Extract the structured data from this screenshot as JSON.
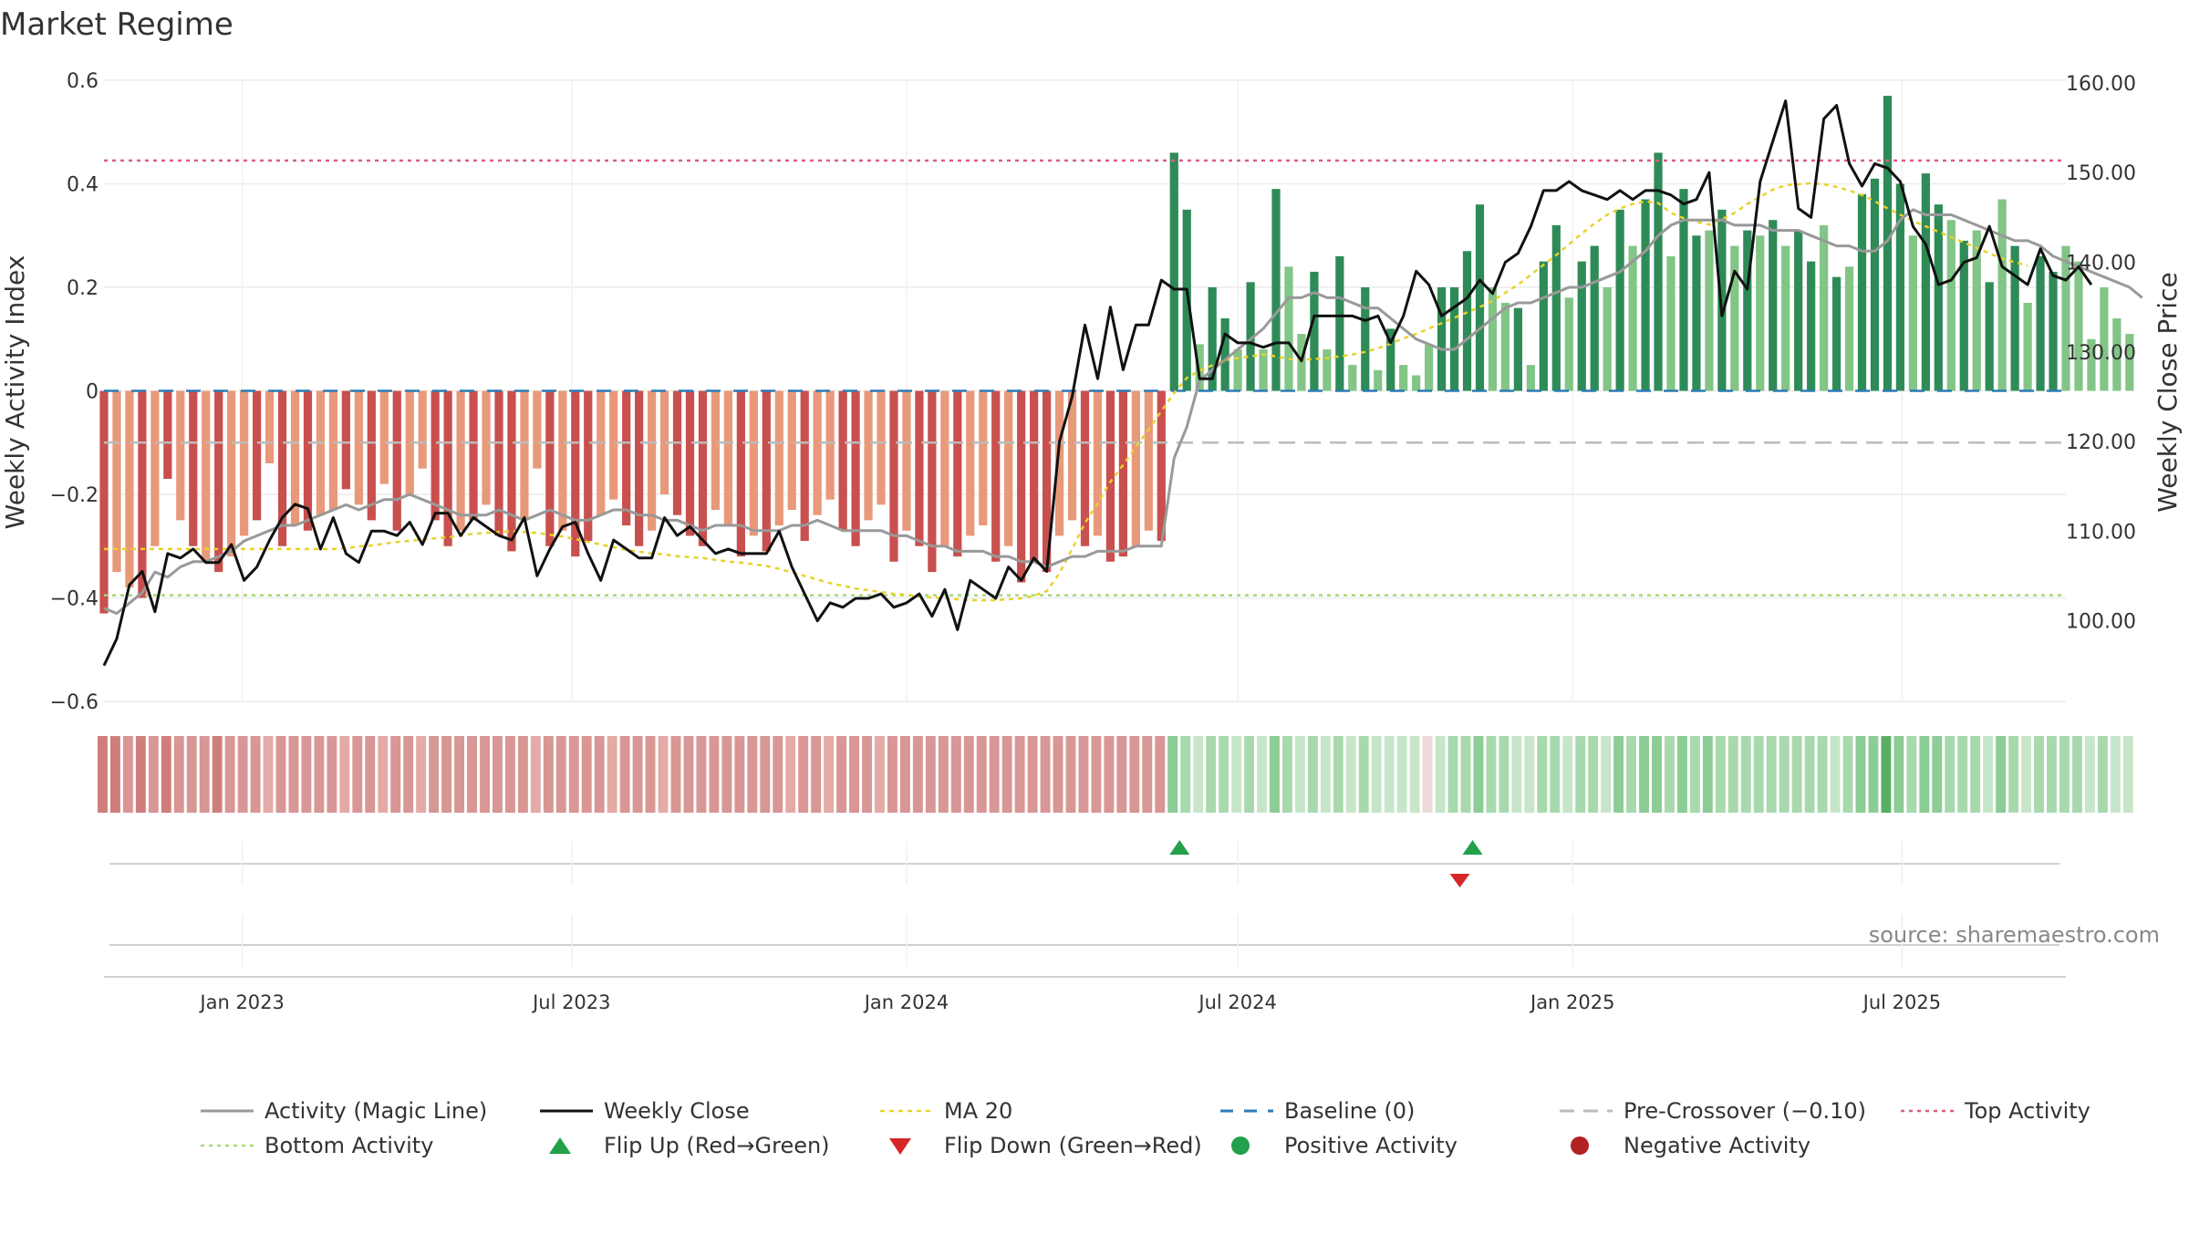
{
  "title": "Market Regime",
  "source": "source: sharemaestro.com",
  "chart_data": {
    "type": "bar",
    "x_label_dates": [
      "Jan 2023",
      "Jul 2023",
      "Jan 2024",
      "Jul 2024",
      "Jan 2025",
      "Jul 2025"
    ],
    "x_range": [
      "2022-10-17",
      "2025-09-29"
    ],
    "left_axis": {
      "label": "Weekly Activity Index",
      "ylim": [
        -0.6,
        0.6
      ],
      "ticks": [
        0.6,
        0.4,
        0.2,
        0,
        -0.2,
        -0.4,
        -0.6
      ],
      "tick_labels": [
        "0.6",
        "0.4",
        "0.2",
        "0",
        "−0.2",
        "−0.4",
        "−0.6"
      ]
    },
    "right_axis": {
      "label": "Weekly Close Price",
      "ylim": [
        91,
        160.3
      ],
      "ticks": [
        160,
        150,
        140,
        130,
        120,
        110,
        100
      ],
      "tick_labels": [
        "160.00",
        "150.00",
        "140.00",
        "130.00",
        "120.00",
        "110.00",
        "100.00"
      ]
    },
    "reference_lines": {
      "baseline": 0,
      "pre_crossover": -0.1,
      "top_activity": 0.445,
      "bottom_activity": -0.395
    },
    "weeks_start": "2022-10-17",
    "week_count": 155,
    "activity": [
      -0.43,
      -0.35,
      -0.38,
      -0.4,
      -0.3,
      -0.17,
      -0.25,
      -0.3,
      -0.33,
      -0.35,
      -0.32,
      -0.28,
      -0.25,
      -0.14,
      -0.3,
      -0.26,
      -0.27,
      -0.24,
      -0.23,
      -0.19,
      -0.22,
      -0.25,
      -0.18,
      -0.27,
      -0.2,
      -0.15,
      -0.25,
      -0.3,
      -0.27,
      -0.25,
      -0.22,
      -0.28,
      -0.31,
      -0.25,
      -0.15,
      -0.3,
      -0.27,
      -0.32,
      -0.29,
      -0.24,
      -0.21,
      -0.26,
      -0.3,
      -0.27,
      -0.2,
      -0.24,
      -0.28,
      -0.3,
      -0.23,
      -0.26,
      -0.32,
      -0.28,
      -0.31,
      -0.26,
      -0.23,
      -0.29,
      -0.24,
      -0.21,
      -0.27,
      -0.3,
      -0.25,
      -0.22,
      -0.33,
      -0.27,
      -0.3,
      -0.35,
      -0.3,
      -0.32,
      -0.28,
      -0.26,
      -0.33,
      -0.3,
      -0.37,
      -0.33,
      -0.35,
      -0.28,
      -0.25,
      -0.3,
      -0.28,
      -0.33,
      -0.32,
      -0.3,
      -0.27,
      -0.29,
      0.46,
      0.35,
      0.09,
      0.2,
      0.14,
      0.08,
      0.21,
      0.08,
      0.39,
      0.24,
      0.11,
      0.23,
      0.08,
      0.26,
      0.05,
      0.2,
      0.04,
      0.12,
      0.05,
      0.03,
      0.09,
      0.2,
      0.2,
      0.27,
      0.36,
      0.2,
      0.17,
      0.16,
      0.05,
      0.25,
      0.32,
      0.18,
      0.25,
      0.28,
      0.2,
      0.35,
      0.28,
      0.37,
      0.46,
      0.26,
      0.39,
      0.3,
      0.31,
      0.35,
      0.28,
      0.31,
      0.3,
      0.33,
      0.28,
      0.31,
      0.25,
      0.32,
      0.22,
      0.24,
      0.38,
      0.41,
      0.57,
      0.4,
      0.3,
      0.42,
      0.36,
      0.33,
      0.29,
      0.31,
      0.21,
      0.37,
      0.28,
      0.17,
      0.26,
      0.23,
      0.28,
      0.25,
      0.1,
      0.2,
      0.14,
      0.11
    ],
    "activity_strength": [
      1,
      0,
      0,
      1,
      0,
      1,
      0,
      1,
      0,
      1,
      0,
      0,
      1,
      0,
      1,
      0,
      1,
      0,
      0,
      1,
      0,
      1,
      0,
      1,
      0,
      0,
      1,
      1,
      0,
      1,
      0,
      1,
      1,
      0,
      0,
      1,
      0,
      1,
      1,
      0,
      0,
      1,
      1,
      0,
      0,
      1,
      1,
      1,
      0,
      0,
      1,
      0,
      1,
      0,
      0,
      1,
      0,
      0,
      1,
      1,
      0,
      0,
      1,
      0,
      1,
      1,
      0,
      1,
      0,
      0,
      1,
      0,
      1,
      1,
      1,
      0,
      0,
      1,
      0,
      1,
      1,
      0,
      0,
      1,
      1,
      1,
      0,
      1,
      1,
      0,
      1,
      0,
      1,
      0,
      0,
      1,
      0,
      1,
      0,
      1,
      0,
      1,
      0,
      0,
      0,
      1,
      1,
      1,
      1,
      0,
      0,
      1,
      0,
      1,
      1,
      0,
      1,
      1,
      0,
      1,
      0,
      1,
      1,
      0,
      1,
      1,
      0,
      1,
      0,
      1,
      0,
      1,
      0,
      1,
      1,
      0,
      1,
      0,
      1,
      1,
      1,
      1,
      0,
      1,
      1,
      0,
      1,
      0,
      1,
      0,
      1,
      0,
      1,
      1,
      0
    ],
    "magic_line": [
      -0.42,
      -0.43,
      -0.41,
      -0.39,
      -0.35,
      -0.36,
      -0.34,
      -0.33,
      -0.33,
      -0.32,
      -0.31,
      -0.29,
      -0.28,
      -0.27,
      -0.26,
      -0.26,
      -0.25,
      -0.24,
      -0.23,
      -0.22,
      -0.23,
      -0.22,
      -0.21,
      -0.21,
      -0.2,
      -0.21,
      -0.22,
      -0.23,
      -0.24,
      -0.24,
      -0.24,
      -0.23,
      -0.24,
      -0.25,
      -0.24,
      -0.23,
      -0.24,
      -0.25,
      -0.25,
      -0.24,
      -0.23,
      -0.23,
      -0.24,
      -0.24,
      -0.25,
      -0.25,
      -0.26,
      -0.27,
      -0.26,
      -0.26,
      -0.26,
      -0.27,
      -0.27,
      -0.27,
      -0.26,
      -0.26,
      -0.25,
      -0.26,
      -0.27,
      -0.27,
      -0.27,
      -0.27,
      -0.28,
      -0.28,
      -0.29,
      -0.3,
      -0.3,
      -0.31,
      -0.31,
      -0.31,
      -0.32,
      -0.32,
      -0.33,
      -0.33,
      -0.34,
      -0.33,
      -0.32,
      -0.32,
      -0.31,
      -0.31,
      -0.31,
      -0.3,
      -0.3,
      -0.3,
      -0.13,
      -0.07,
      0.02,
      0.04,
      0.06,
      0.08,
      0.1,
      0.12,
      0.15,
      0.18,
      0.18,
      0.19,
      0.18,
      0.18,
      0.17,
      0.16,
      0.16,
      0.14,
      0.12,
      0.1,
      0.09,
      0.08,
      0.08,
      0.1,
      0.12,
      0.14,
      0.16,
      0.17,
      0.17,
      0.18,
      0.19,
      0.2,
      0.2,
      0.21,
      0.22,
      0.23,
      0.25,
      0.27,
      0.3,
      0.32,
      0.33,
      0.33,
      0.33,
      0.33,
      0.32,
      0.32,
      0.32,
      0.31,
      0.31,
      0.31,
      0.3,
      0.29,
      0.28,
      0.28,
      0.27,
      0.27,
      0.29,
      0.33,
      0.35,
      0.34,
      0.34,
      0.34,
      0.33,
      0.32,
      0.31,
      0.3,
      0.29,
      0.29,
      0.28,
      0.26,
      0.25,
      0.24,
      0.23,
      0.22,
      0.21,
      0.2,
      0.18
    ],
    "weekly_close": [
      95,
      98,
      104,
      105.5,
      101,
      107.5,
      107,
      108,
      106.5,
      106.5,
      108.5,
      104.5,
      106,
      109,
      111.5,
      113,
      112.5,
      108,
      111.5,
      107.5,
      106.5,
      110,
      110,
      109.5,
      111,
      108.5,
      112,
      112,
      109.5,
      111.5,
      110.5,
      109.5,
      109,
      111.5,
      105,
      108,
      110.5,
      111,
      107.5,
      104.5,
      109,
      108,
      107,
      107,
      111.5,
      109.5,
      110.5,
      109,
      107.5,
      108,
      107.5,
      107.5,
      107.5,
      110,
      106,
      103,
      100,
      102,
      101.5,
      102.5,
      102.5,
      103,
      101.5,
      102,
      103,
      100.5,
      103.5,
      99,
      104.5,
      103.5,
      102.5,
      106,
      104.5,
      107,
      105.5,
      120,
      125,
      133,
      127,
      135,
      128,
      133,
      133,
      138,
      137,
      137,
      127,
      127,
      132,
      131,
      131,
      130.5,
      131,
      131,
      129,
      134,
      134,
      134,
      134,
      133.5,
      134,
      131,
      134,
      139,
      137.5,
      134,
      135,
      136,
      138,
      136.5,
      140,
      141,
      144,
      148,
      148,
      149,
      148,
      147.5,
      147,
      148,
      147,
      148,
      148,
      147.5,
      146.5,
      147,
      150,
      134,
      139,
      137,
      149,
      153.5,
      158,
      146,
      145,
      156,
      157.5,
      151,
      148.5,
      151,
      150.5,
      149,
      144,
      142,
      137.5,
      138,
      140,
      140.5,
      144,
      139.5,
      138.5,
      137.5,
      141.5,
      138.5,
      138,
      139.5,
      137.5
    ],
    "ma20": [
      108,
      108,
      108,
      108,
      108,
      108,
      108,
      108,
      108,
      108,
      108,
      108,
      108,
      108,
      108,
      108,
      108,
      108,
      108,
      108.1,
      108.3,
      108.4,
      108.6,
      108.8,
      108.9,
      109.1,
      109.2,
      109.3,
      109.5,
      109.7,
      109.8,
      109.9,
      110,
      109.9,
      109.8,
      109.6,
      109.4,
      109.1,
      108.8,
      108.5,
      108.2,
      107.9,
      107.7,
      107.5,
      107.4,
      107.2,
      107.1,
      107,
      106.8,
      106.6,
      106.5,
      106.3,
      106.1,
      105.8,
      105.4,
      105,
      104.6,
      104.2,
      103.9,
      103.6,
      103.4,
      103.2,
      103,
      102.9,
      102.7,
      102.6,
      102.5,
      102.4,
      102.3,
      102.3,
      102.3,
      102.4,
      102.5,
      102.8,
      103.3,
      105.3,
      108,
      110.9,
      113.1,
      115.5,
      117.4,
      119.4,
      121.3,
      123.4,
      125.4,
      127.1,
      127.9,
      128.5,
      129.1,
      129.3,
      129.5,
      129.7,
      129.5,
      129.2,
      129.1,
      129.2,
      129.3,
      129.5,
      129.7,
      130,
      130.4,
      130.9,
      131.5,
      132,
      132.6,
      133.2,
      133.8,
      134.4,
      135,
      135.7,
      136.6,
      137.5,
      138.6,
      139.7,
      140.8,
      142,
      143.2,
      144.3,
      145.3,
      146,
      146.5,
      146.8,
      146.6,
      145.5,
      144.9,
      144.5,
      144.2,
      144.8,
      145.5,
      146.5,
      147.3,
      148.1,
      148.6,
      148.7,
      148.8,
      148.7,
      148.4,
      148,
      147.5,
      146.8,
      146,
      145.3,
      144.6,
      144,
      143.4,
      142.8,
      142.2,
      141.6,
      141,
      140.4,
      140,
      139.6
    ],
    "regime_strength": [
      3,
      3,
      2,
      3,
      2,
      3,
      2,
      2,
      2,
      3,
      2,
      2,
      2,
      1,
      2,
      2,
      2,
      2,
      2,
      1,
      2,
      2,
      1,
      2,
      2,
      1,
      2,
      2,
      2,
      2,
      2,
      2,
      2,
      2,
      1,
      2,
      2,
      2,
      2,
      2,
      1,
      2,
      2,
      2,
      1,
      2,
      2,
      2,
      2,
      2,
      2,
      2,
      2,
      2,
      1,
      2,
      2,
      1,
      2,
      2,
      2,
      1,
      2,
      2,
      2,
      2,
      2,
      2,
      2,
      2,
      2,
      2,
      2,
      2,
      2,
      2,
      2,
      2,
      2,
      2,
      2,
      2,
      2,
      2,
      3,
      2,
      1,
      2,
      2,
      1,
      2,
      1,
      3,
      2,
      1,
      2,
      1,
      2,
      1,
      2,
      1,
      1,
      1,
      1,
      0,
      1,
      2,
      2,
      3,
      2,
      2,
      1,
      1,
      2,
      2,
      1,
      2,
      2,
      1,
      3,
      2,
      3,
      3,
      2,
      3,
      2,
      3,
      2,
      2,
      2,
      2,
      2,
      2,
      2,
      2,
      2,
      1,
      2,
      3,
      3,
      4,
      3,
      2,
      3,
      3,
      2,
      2,
      2,
      1,
      3,
      2,
      1,
      2,
      2,
      2,
      2,
      1,
      2,
      1,
      1
    ],
    "flip_up_weeks": [
      84,
      107
    ],
    "flip_down_weeks": [
      106
    ],
    "legend": [
      "Activity (Magic Line)",
      "Weekly Close",
      "MA 20",
      "Baseline (0)",
      "Pre-Crossover (−0.10)",
      "Top Activity",
      "Bottom Activity",
      "Flip Up (Red→Green)",
      "Flip Down (Green→Red)",
      "Positive Activity",
      "Negative Activity"
    ],
    "legend_placement": "bottom",
    "grid": true
  },
  "colors": {
    "neg_strong": "#c8504e",
    "neg_light": "#e8997a",
    "pos_strong": "#2e8b57",
    "pos_light": "#82c587",
    "magic_line": "#999999",
    "weekly_close": "#111111",
    "ma20": "#e8d22b",
    "baseline": "#2c7bb6",
    "pre_crossover": "#bbbbbb",
    "top_activity": "#d9607a",
    "bottom_activity": "#a3d977",
    "flip_up": "#22a14a",
    "flip_down": "#d62728",
    "positive_dot": "#22a14a",
    "negative_dot": "#b22222"
  }
}
